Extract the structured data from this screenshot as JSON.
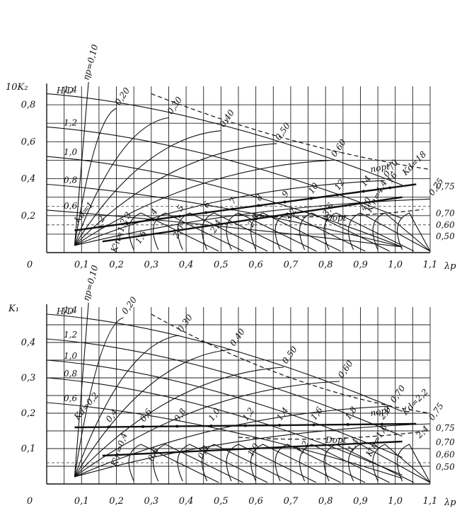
{
  "chart_data": [
    {
      "type": "line",
      "ylabel": "10K₂",
      "xlabel": "λp",
      "x_ticks": [
        "0",
        "0,1",
        "0,2",
        "0,3",
        "0,4",
        "0,5",
        "0,6",
        "0,7",
        "0,8",
        "0,9",
        "1,0",
        "1,1"
      ],
      "y_ticks": [
        "0,2",
        "0,4",
        "0,6",
        "0,8"
      ],
      "xlim": [
        0,
        1.1
      ],
      "ylim": [
        0,
        0.9
      ],
      "dashed_y": [
        0.15,
        0.25
      ],
      "eta_label": "ηp=0,10",
      "eta_series": [
        {
          "name": "0,20",
          "x": 0.2,
          "y": 0.78
        },
        {
          "name": "0,30",
          "x": 0.35,
          "y": 0.73
        },
        {
          "name": "0,40",
          "x": 0.5,
          "y": 0.66
        },
        {
          "name": "0,50",
          "x": 0.66,
          "y": 0.59
        },
        {
          "name": "0,60",
          "x": 0.82,
          "y": 0.5
        },
        {
          "name": "0,70",
          "x": 0.97,
          "y": 0.39
        },
        {
          "name": "0,75",
          "x": 1.1,
          "y": 0.29
        }
      ],
      "hd_label": "H/D",
      "hd_series": [
        {
          "name": "1,4",
          "y": 0.86
        },
        {
          "name": "1,2",
          "y": 0.68
        },
        {
          "name": "1,0",
          "y": 0.52
        },
        {
          "name": "0,8",
          "y": 0.37
        },
        {
          "name": "0,6",
          "y": 0.23
        }
      ],
      "kd_label": "Kd=1",
      "kd_values": [
        "2",
        "3",
        "4",
        "5",
        "6",
        "7",
        "8",
        "9",
        "10",
        "12",
        "14",
        "16"
      ],
      "kd_end_label": "Kd=18",
      "kn_label": "K'n=1,2",
      "kn_values": [
        "1,6",
        "2,0",
        "2,4",
        "2,8",
        "3,2",
        "3,6",
        "4,0"
      ],
      "kn_end_label": "K'n=4,4",
      "n_opt_label": "nopt",
      "d_opt_label": "Dopt",
      "right_labels": [
        "0,75",
        "0,70",
        "0,60",
        "0,50"
      ]
    },
    {
      "type": "line",
      "ylabel": "K₁",
      "xlabel": "λp",
      "x_ticks": [
        "0",
        "0,1",
        "0,2",
        "0,3",
        "0,4",
        "0,5",
        "0,6",
        "0,7",
        "0,8",
        "0,9",
        "1,0",
        "1,1"
      ],
      "y_ticks": [
        "0,1",
        "0,2",
        "0,3",
        "0,4"
      ],
      "xlim": [
        0,
        1.1
      ],
      "ylim": [
        0,
        0.5
      ],
      "dashed_y": [
        0.06,
        0.15
      ],
      "eta_label": "ηp=0,10",
      "eta_series": [
        {
          "name": "0,20",
          "x": 0.22,
          "y": 0.47
        },
        {
          "name": "0,30",
          "x": 0.38,
          "y": 0.42
        },
        {
          "name": "0,40",
          "x": 0.53,
          "y": 0.38
        },
        {
          "name": "0,50",
          "x": 0.68,
          "y": 0.33
        },
        {
          "name": "0,60",
          "x": 0.84,
          "y": 0.29
        },
        {
          "name": "0,70",
          "x": 0.99,
          "y": 0.22
        },
        {
          "name": "0,75",
          "x": 1.1,
          "y": 0.17
        }
      ],
      "hd_label": "H/D",
      "hd_series": [
        {
          "name": "1,4",
          "y": 0.48
        },
        {
          "name": "1,2",
          "y": 0.41
        },
        {
          "name": "1,0",
          "y": 0.35
        },
        {
          "name": "0,8",
          "y": 0.3
        },
        {
          "name": "0,6",
          "y": 0.23
        }
      ],
      "kd_label": "Kd=0,2",
      "kd_values": [
        "0,4",
        "0,6",
        "0,8",
        "1,0",
        "1,2",
        "1,4",
        "1,6",
        "1,8",
        "2,0"
      ],
      "kd_end_label": "Kd=2,2",
      "kn_label": "K'n=0,4",
      "kn_values": [
        "0,6",
        "0,8",
        "1,0",
        "1,2",
        "1,4"
      ],
      "kn_end_label": "K'n=1,6",
      "kn_extra": "2,4",
      "n_opt_label": "nopt",
      "d_opt_label": "Dopt",
      "right_labels": [
        "0,75",
        "0,70",
        "0,60",
        "0,50"
      ]
    }
  ]
}
